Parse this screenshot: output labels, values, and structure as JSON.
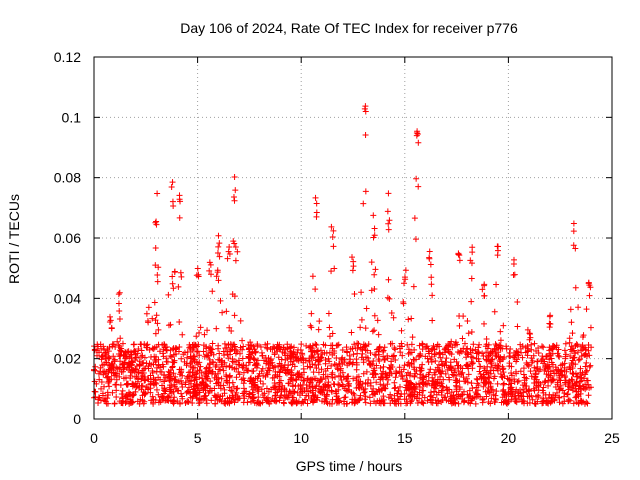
{
  "chart_data": {
    "type": "scatter",
    "title": "Day 106 of 2024, Rate Of TEC Index for receiver p776",
    "xlabel": "GPS time / hours",
    "ylabel": "ROTI / TECUs",
    "xlim": [
      0,
      25
    ],
    "ylim": [
      0,
      0.12
    ],
    "xticks": [
      0,
      5,
      10,
      15,
      20,
      25
    ],
    "xtick_labels": [
      "0",
      "5",
      "10",
      "15",
      "20",
      "25"
    ],
    "yticks": [
      0,
      0.02,
      0.04,
      0.06,
      0.08,
      0.1,
      0.12
    ],
    "ytick_labels": [
      "0",
      "0.02",
      "0.04",
      "0.06",
      "0.08",
      "0.1",
      "0.12"
    ],
    "grid": true,
    "marker": "+",
    "color": "#ff0000",
    "series": [
      {
        "name": "ROTI",
        "x_range": [
          0,
          24
        ],
        "baseline_range": [
          0.005,
          0.025
        ],
        "peaks": [
          {
            "x": 0.2,
            "y": 0.025
          },
          {
            "x": 0.8,
            "y": 0.035
          },
          {
            "x": 1.2,
            "y": 0.042
          },
          {
            "x": 2.6,
            "y": 0.037
          },
          {
            "x": 3.0,
            "y": 0.075
          },
          {
            "x": 3.8,
            "y": 0.083
          },
          {
            "x": 4.1,
            "y": 0.077
          },
          {
            "x": 5.0,
            "y": 0.052
          },
          {
            "x": 5.6,
            "y": 0.056
          },
          {
            "x": 6.0,
            "y": 0.063
          },
          {
            "x": 6.5,
            "y": 0.062
          },
          {
            "x": 6.8,
            "y": 0.083
          },
          {
            "x": 7.5,
            "y": 0.026
          },
          {
            "x": 9.5,
            "y": 0.022
          },
          {
            "x": 10.7,
            "y": 0.076
          },
          {
            "x": 11.5,
            "y": 0.065
          },
          {
            "x": 12.5,
            "y": 0.055
          },
          {
            "x": 13.1,
            "y": 0.104
          },
          {
            "x": 13.5,
            "y": 0.07
          },
          {
            "x": 14.2,
            "y": 0.075
          },
          {
            "x": 15.0,
            "y": 0.05
          },
          {
            "x": 15.6,
            "y": 0.102
          },
          {
            "x": 16.2,
            "y": 0.06
          },
          {
            "x": 17.6,
            "y": 0.059
          },
          {
            "x": 18.2,
            "y": 0.058
          },
          {
            "x": 18.8,
            "y": 0.048
          },
          {
            "x": 19.5,
            "y": 0.058
          },
          {
            "x": 20.3,
            "y": 0.055
          },
          {
            "x": 21.0,
            "y": 0.03
          },
          {
            "x": 22.0,
            "y": 0.035
          },
          {
            "x": 23.2,
            "y": 0.065
          },
          {
            "x": 23.9,
            "y": 0.049
          }
        ]
      }
    ]
  }
}
